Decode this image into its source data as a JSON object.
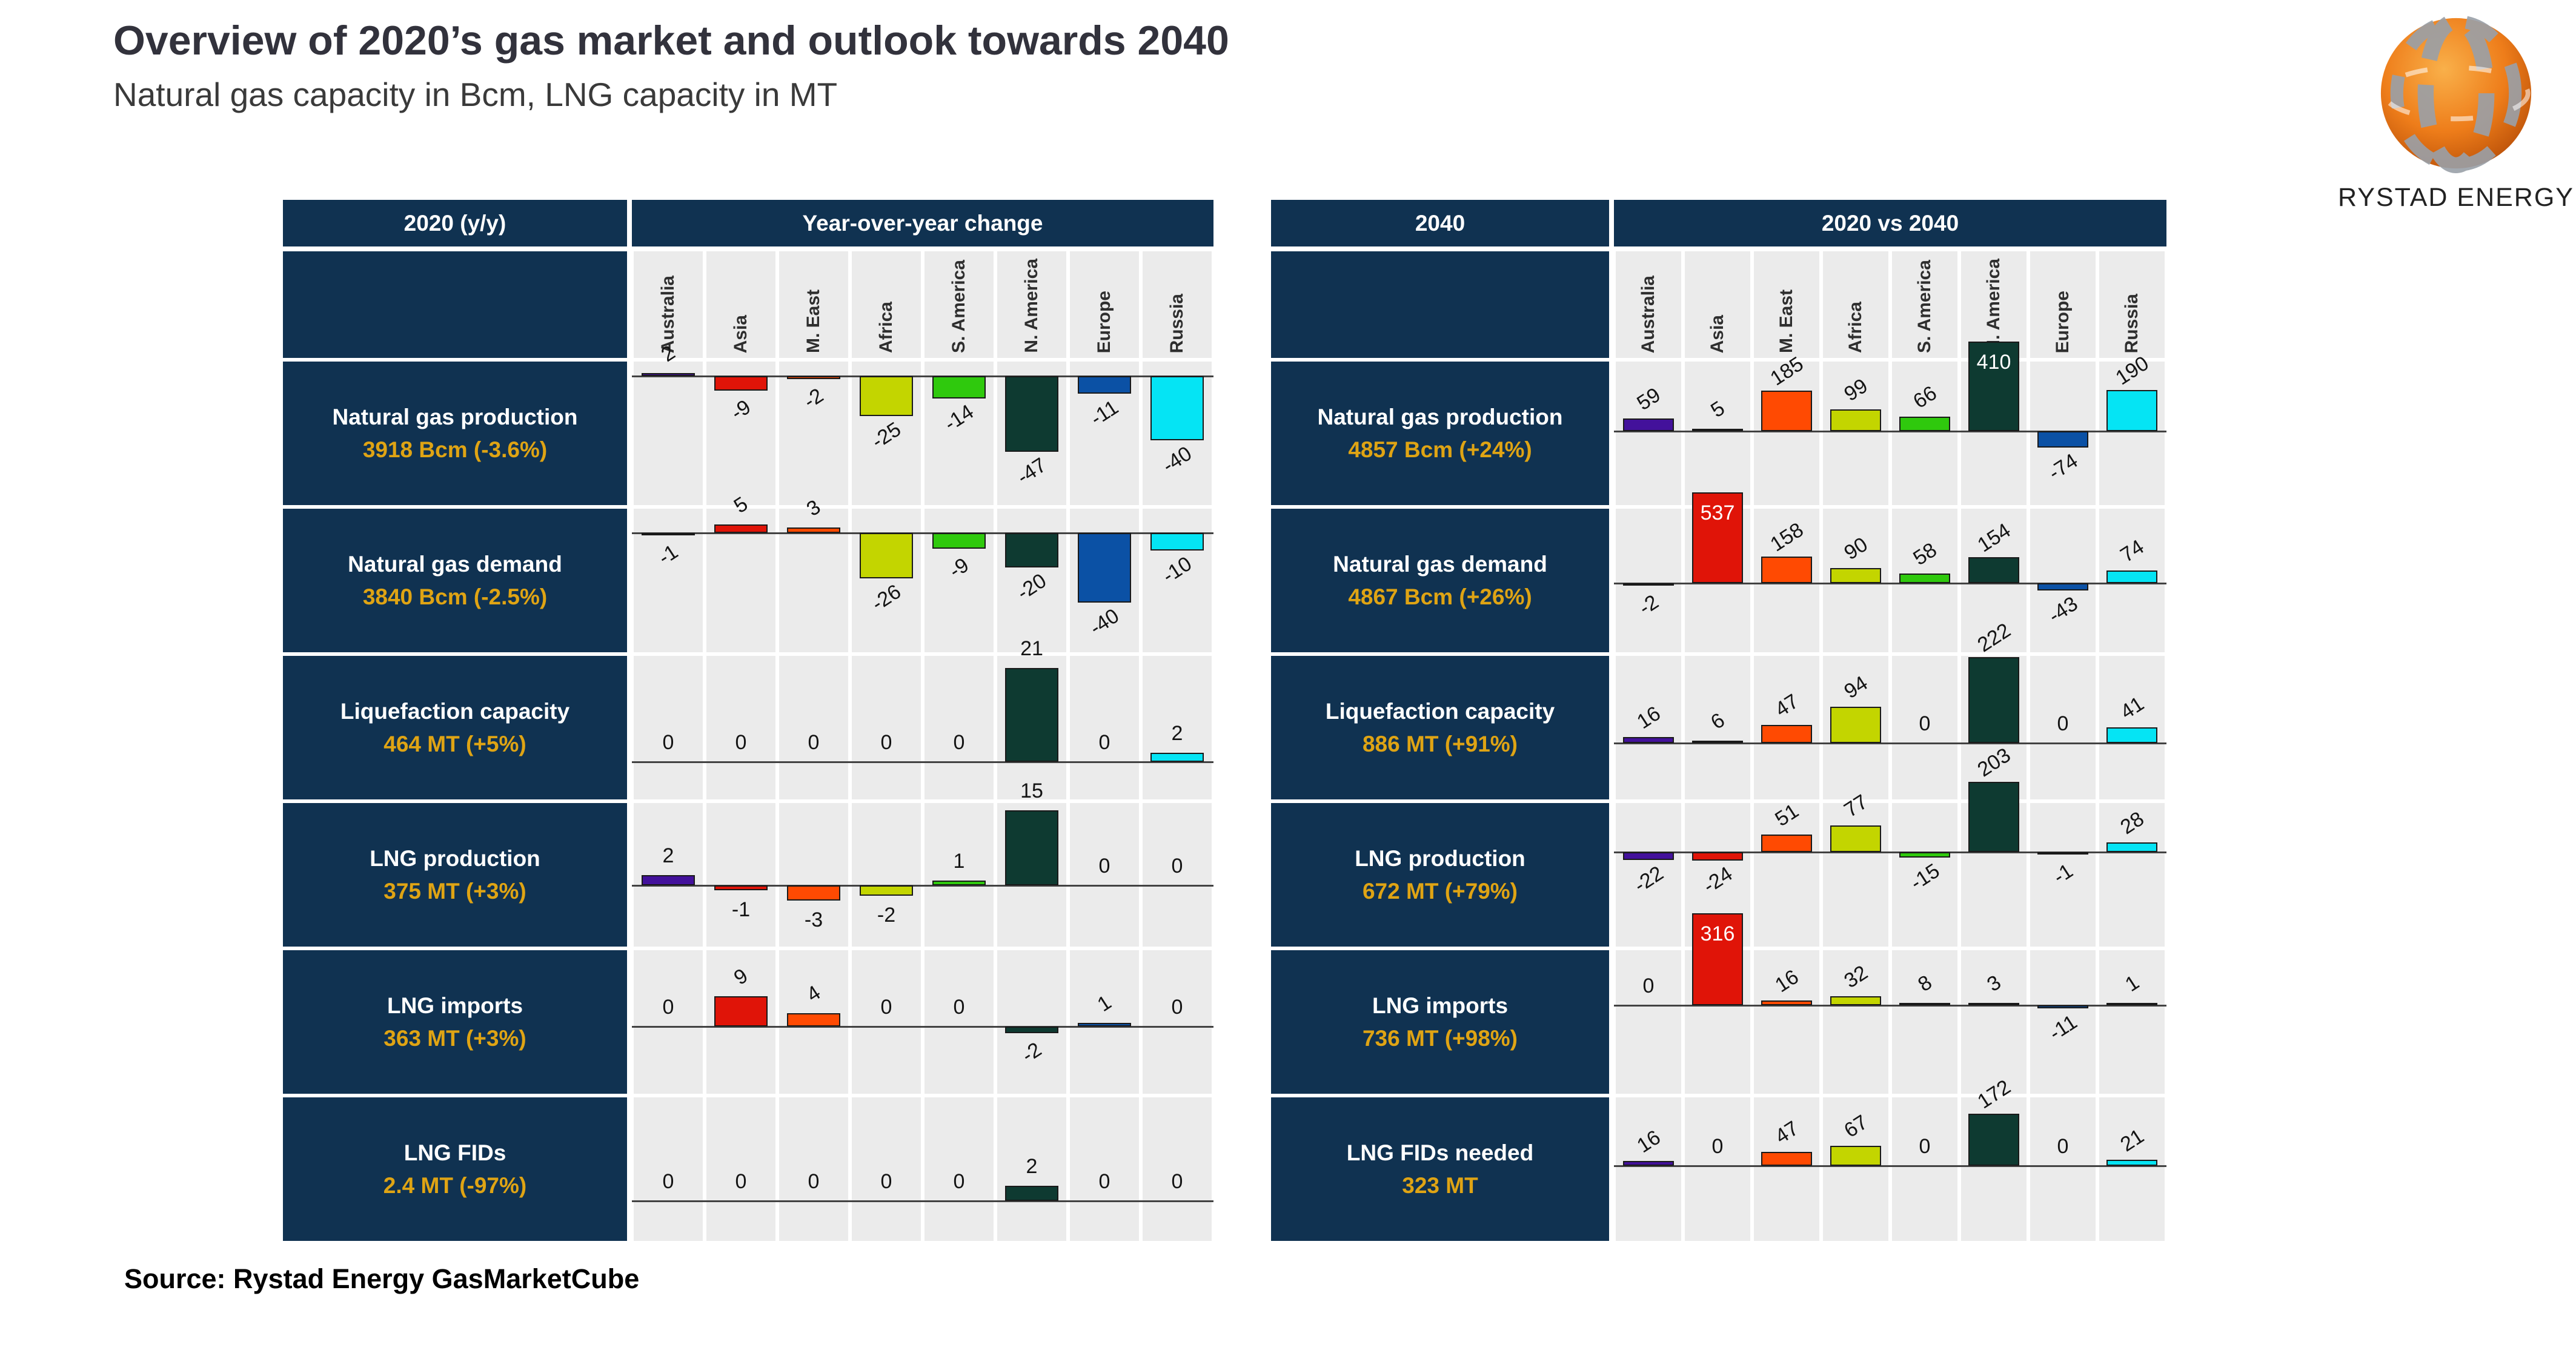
{
  "title": "Overview of 2020’s gas market and outlook towards 2040",
  "subtitle": "Natural gas capacity in Bcm, LNG capacity in MT",
  "source": "Source: Rystad Energy GasMarketCube",
  "logo": {
    "brand": "RYSTAD ENERGY"
  },
  "colors": {
    "navy": "#103251",
    "amber": "#dfa414",
    "cell_bg": "#ebebeb",
    "axis": "#424242",
    "bar_border": "#191919",
    "region_colors": [
      "#43119b",
      "#e01408",
      "#ff4a02",
      "#c3d500",
      "#2fc90d",
      "#0e3a31",
      "#0b51a5",
      "#05e4f4"
    ]
  },
  "chart_data": {
    "type": "bar",
    "categories": [
      "Australia",
      "Asia",
      "M. East",
      "Africa",
      "S. America",
      "N. America",
      "Europe",
      "Russia"
    ],
    "legend_position": "none",
    "grid": false,
    "panels": [
      {
        "header_label": "2020 (y/y)",
        "header_span": "Year-over-year change",
        "rows": [
          {
            "title": "Natural gas production",
            "subtitle": "3918 Bcm (-3.6%)",
            "values": [
              2,
              -9,
              -2,
              -25,
              -14,
              -47,
              -11,
              -40
            ]
          },
          {
            "title": "Natural gas demand",
            "subtitle": "3840 Bcm (-2.5%)",
            "values": [
              -1,
              5,
              3,
              -26,
              -9,
              -20,
              -40,
              -10
            ]
          },
          {
            "title": "Liquefaction capacity",
            "subtitle": "464 MT (+5%)",
            "values": [
              0,
              0,
              0,
              0,
              0,
              21,
              0,
              2
            ]
          },
          {
            "title": "LNG production",
            "subtitle": "375 MT (+3%)",
            "values": [
              2,
              -1,
              -3,
              -2,
              1,
              15,
              0,
              0
            ]
          },
          {
            "title": "LNG imports",
            "subtitle": "363 MT (+3%)",
            "values": [
              0,
              9,
              4,
              0,
              0,
              -2,
              1,
              0
            ]
          },
          {
            "title": "LNG FIDs",
            "subtitle": "2.4 MT (-97%)",
            "values": [
              0,
              0,
              0,
              0,
              0,
              2,
              0,
              0
            ]
          }
        ]
      },
      {
        "header_label": "2040",
        "header_span": "2020 vs 2040",
        "rows": [
          {
            "title": "Natural gas production",
            "subtitle": "4857 Bcm (+24%)",
            "values": [
              59,
              5,
              185,
              99,
              66,
              410,
              -74,
              190
            ],
            "label_in_bar": [
              5
            ]
          },
          {
            "title": "Natural gas demand",
            "subtitle": "4867 Bcm (+26%)",
            "values": [
              -2,
              537,
              158,
              90,
              58,
              154,
              -43,
              74
            ],
            "label_in_bar": [
              1
            ]
          },
          {
            "title": "Liquefaction capacity",
            "subtitle": "886 MT (+91%)",
            "values": [
              16,
              6,
              47,
              94,
              0,
              222,
              0,
              41
            ]
          },
          {
            "title": "LNG production",
            "subtitle": "672 MT (+79%)",
            "values": [
              -22,
              -24,
              51,
              77,
              -15,
              203,
              -1,
              28
            ]
          },
          {
            "title": "LNG imports",
            "subtitle": "736 MT (+98%)",
            "values": [
              0,
              316,
              16,
              32,
              8,
              3,
              -11,
              1
            ],
            "label_in_bar": [
              1
            ]
          },
          {
            "title": "LNG FIDs needed",
            "subtitle": "323 MT",
            "values": [
              16,
              0,
              47,
              67,
              0,
              172,
              0,
              21
            ]
          }
        ]
      }
    ]
  }
}
